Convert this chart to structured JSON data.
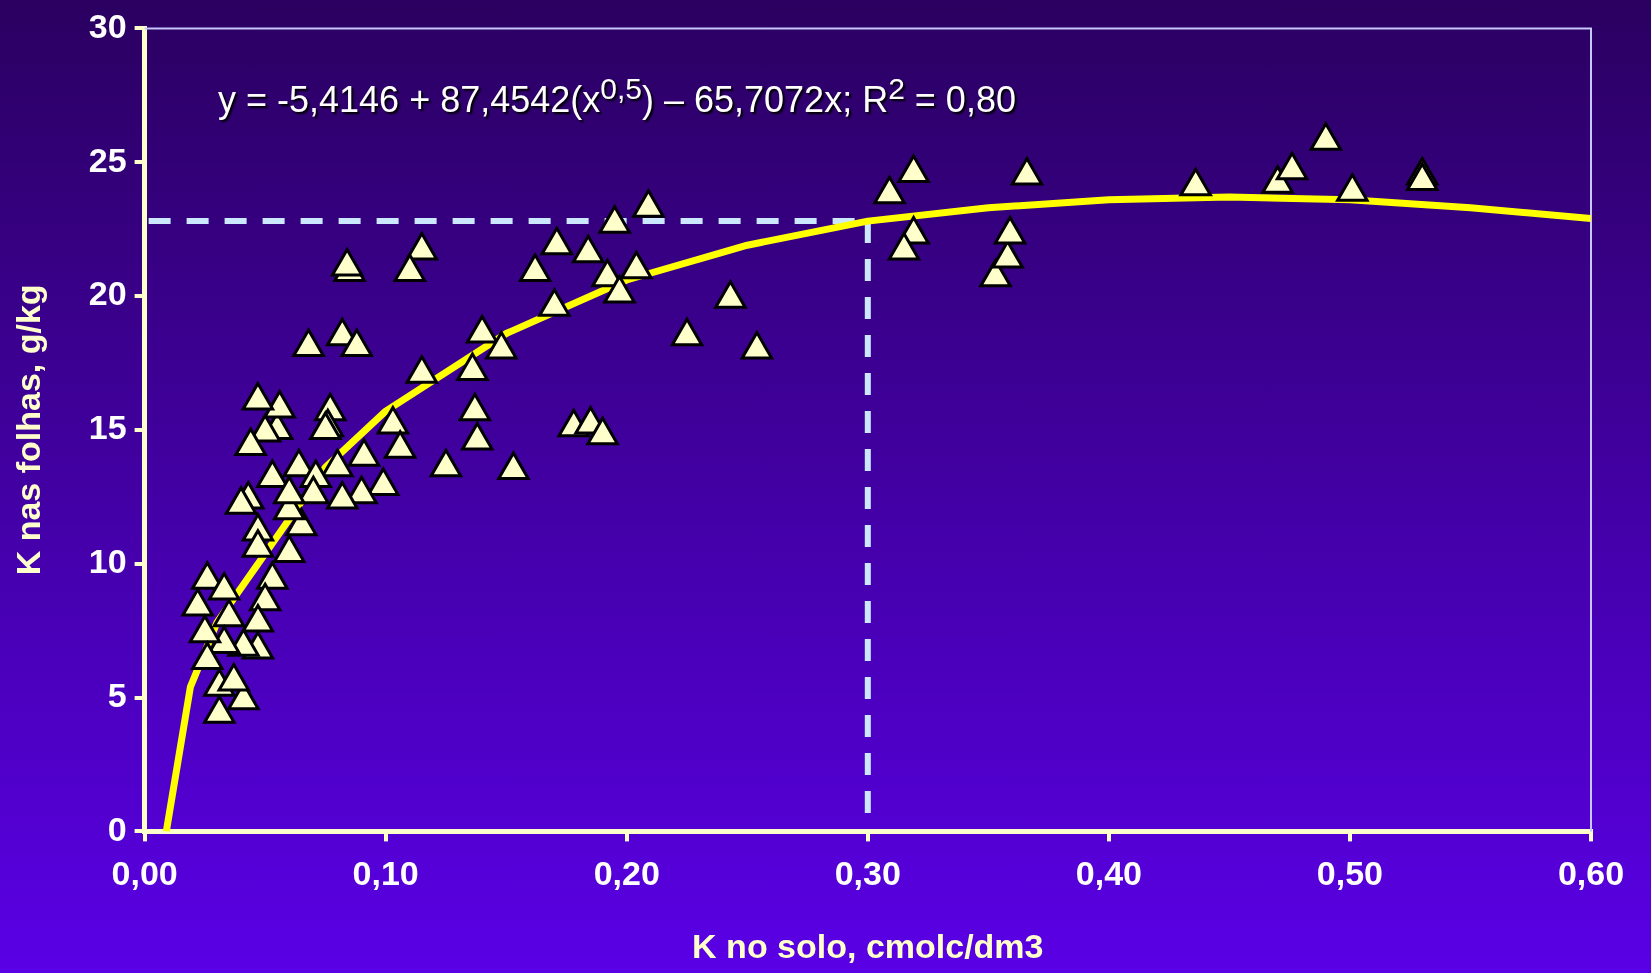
{
  "chart_data": {
    "type": "scatter",
    "xlabel": "K no solo, cmolc/dm3",
    "ylabel": "K nas folhas, g/kg",
    "annotations": [
      "y = -5,4146 + 87,4542(x$^{0,5}$) – 65,7072x;  R$^{2}$ = 0,80"
    ],
    "xlim": [
      0,
      0.6
    ],
    "xticks": [
      {
        "value": 0,
        "label": "0,00"
      },
      {
        "value": 0.1,
        "label": "0,10"
      },
      {
        "value": 0.2,
        "label": "0,20"
      },
      {
        "value": 0.3,
        "label": "0,30"
      },
      {
        "value": 0.4,
        "label": "0,40"
      },
      {
        "value": 0.5,
        "label": "0,50"
      },
      {
        "value": 0.6,
        "label": "0,60"
      }
    ],
    "ylim": [
      0,
      30
    ],
    "yticks": [
      0,
      5,
      10,
      15,
      20,
      25,
      30
    ],
    "grid": false,
    "legend": false,
    "marker": "triangle",
    "ref_lines": [
      {
        "axis": "y",
        "value": 22.8,
        "color": "#cce8ff",
        "line_style": "dashed"
      },
      {
        "axis": "x",
        "value": 0.3,
        "color": "#cce8ff",
        "line_style": "dashed"
      }
    ],
    "series": [
      {
        "color": "#ffffcc",
        "x": [
          0.309,
          0.319,
          0.319,
          0.315,
          0.353,
          0.358,
          0.359,
          0.366,
          0.436,
          0.47,
          0.476,
          0.49,
          0.501,
          0.53,
          0.53,
          0.209,
          0.195,
          0.204,
          0.192,
          0.197,
          0.184,
          0.171,
          0.162,
          0.17,
          0.225,
          0.243,
          0.254,
          0.178,
          0.185,
          0.19,
          0.153,
          0.137,
          0.138,
          0.136,
          0.14,
          0.148,
          0.115,
          0.125,
          0.115,
          0.11,
          0.103,
          0.106,
          0.099,
          0.085,
          0.084,
          0.082,
          0.088,
          0.068,
          0.09,
          0.091,
          0.082,
          0.077,
          0.076,
          0.08,
          0.064,
          0.065,
          0.06,
          0.055,
          0.056,
          0.047,
          0.05,
          0.044,
          0.043,
          0.04,
          0.047,
          0.047,
          0.053,
          0.06,
          0.071,
          0.075,
          0.07,
          0.06,
          0.053,
          0.05,
          0.047,
          0.047,
          0.041,
          0.041,
          0.035,
          0.033,
          0.031,
          0.031,
          0.026,
          0.022,
          0.025,
          0.026,
          0.033,
          0.037
        ],
        "values": [
          23.8,
          24.6,
          22.3,
          21.7,
          20.7,
          21.4,
          22.3,
          24.5,
          24.1,
          24.2,
          24.7,
          25.8,
          23.9,
          24.5,
          24.3,
          23.3,
          22.7,
          21.0,
          20.7,
          20.1,
          21.6,
          21.9,
          20.9,
          19.6,
          18.5,
          19.9,
          18.0,
          15.1,
          15.2,
          14.8,
          13.5,
          15.7,
          14.6,
          17.2,
          18.6,
          18.0,
          17.1,
          13.6,
          21.7,
          20.9,
          15.2,
          14.3,
          12.9,
          20.9,
          21.1,
          18.5,
          18.1,
          18.1,
          12.6,
          14.0,
          12.4,
          15.7,
          15.1,
          13.6,
          13.6,
          11.4,
          10.4,
          15.0,
          15.8,
          16.1,
          14.9,
          14.4,
          12.4,
          12.2,
          11.2,
          10.6,
          13.2,
          12.0,
          13.2,
          15.0,
          12.6,
          12.6,
          9.4,
          8.6,
          7.8,
          6.8,
          6.9,
          4.9,
          8.0,
          7.0,
          5.4,
          4.4,
          9.4,
          8.4,
          7.4,
          6.4,
          9.0,
          5.6
        ]
      },
      {
        "type": "line",
        "color": "#ffff00",
        "marker": "none",
        "x": [
          0.009,
          0.019,
          0.03,
          0.075,
          0.1,
          0.15,
          0.2,
          0.25,
          0.3,
          0.35,
          0.4,
          0.45,
          0.5,
          0.55,
          0.6
        ],
        "values": [
          0,
          5.4,
          7.8,
          13.6,
          15.7,
          18.6,
          20.6,
          21.9,
          22.8,
          23.3,
          23.6,
          23.7,
          23.6,
          23.3,
          22.9
        ]
      }
    ]
  }
}
